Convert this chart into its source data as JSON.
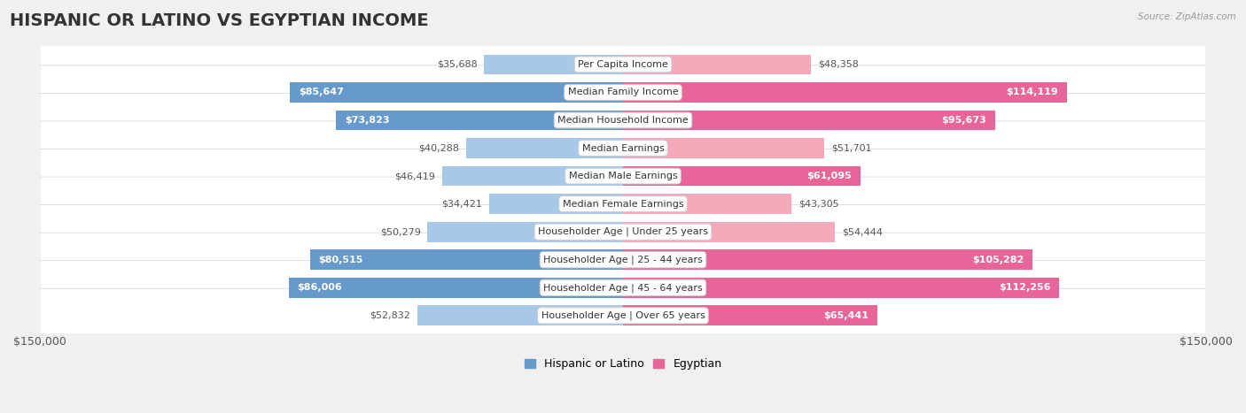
{
  "title": "HISPANIC OR LATINO VS EGYPTIAN INCOME",
  "source": "Source: ZipAtlas.com",
  "categories": [
    "Per Capita Income",
    "Median Family Income",
    "Median Household Income",
    "Median Earnings",
    "Median Male Earnings",
    "Median Female Earnings",
    "Householder Age | Under 25 years",
    "Householder Age | 25 - 44 years",
    "Householder Age | 45 - 64 years",
    "Householder Age | Over 65 years"
  ],
  "hispanic_values": [
    35688,
    85647,
    73823,
    40288,
    46419,
    34421,
    50279,
    80515,
    86006,
    52832
  ],
  "egyptian_values": [
    48358,
    114119,
    95673,
    51701,
    61095,
    43305,
    54444,
    105282,
    112256,
    65441
  ],
  "hispanic_color_light": "#A8C8E8",
  "hispanic_color_dark": "#6699CC",
  "egyptian_color_light": "#F4AABB",
  "egyptian_color_dark": "#E8659A",
  "xlim": 150000,
  "legend_hispanic": "Hispanic or Latino",
  "legend_egyptian": "Egyptian",
  "background_color": "#f0f0f0",
  "row_background": "#ffffff",
  "bar_height": 0.72,
  "title_fontsize": 14,
  "label_fontsize": 9,
  "value_fontsize": 8,
  "category_fontsize": 8,
  "inside_threshold": 60000
}
